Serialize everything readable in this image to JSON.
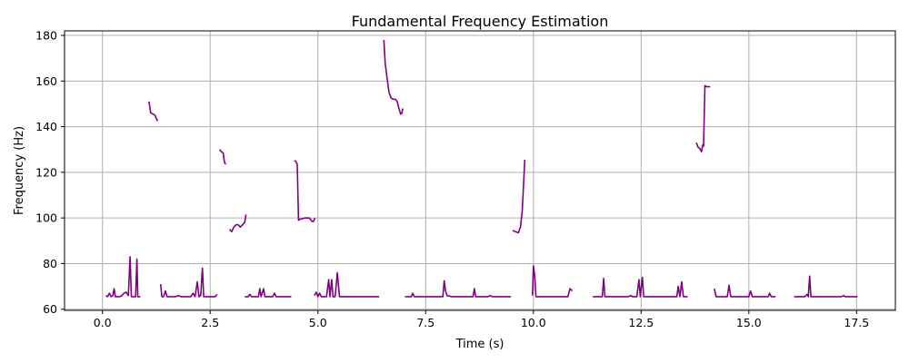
{
  "chart_data": {
    "type": "line",
    "title": "Fundamental Frequency Estimation",
    "xlabel": "Time (s)",
    "ylabel": "Frequency (Hz)",
    "xlim": [
      -0.88,
      18.4
    ],
    "ylim": [
      59.5,
      182
    ],
    "xticks": [
      0.0,
      2.5,
      5.0,
      7.5,
      10.0,
      12.5,
      15.0,
      17.5
    ],
    "xtick_labels": [
      "0.0",
      "2.5",
      "5.0",
      "7.5",
      "10.0",
      "12.5",
      "15.0",
      "17.5"
    ],
    "yticks": [
      60,
      80,
      100,
      120,
      140,
      160,
      180
    ],
    "ytick_labels": [
      "60",
      "80",
      "100",
      "120",
      "140",
      "160",
      "180"
    ],
    "grid": true,
    "line_color": "#800080",
    "series": [
      {
        "segments": [
          [
            [
              0.08,
              66
            ],
            [
              0.12,
              65.5
            ],
            [
              0.16,
              67
            ],
            [
              0.2,
              65.5
            ],
            [
              0.24,
              66
            ],
            [
              0.27,
              69
            ],
            [
              0.3,
              65.5
            ],
            [
              0.34,
              65.5
            ],
            [
              0.4,
              65.5
            ],
            [
              0.45,
              66
            ],
            [
              0.5,
              67
            ],
            [
              0.55,
              67.5
            ],
            [
              0.6,
              66
            ],
            [
              0.64,
              83
            ],
            [
              0.67,
              65.5
            ],
            [
              0.72,
              65.5
            ],
            [
              0.77,
              65.5
            ],
            [
              0.8,
              82
            ],
            [
              0.82,
              65.5
            ],
            [
              0.88,
              65.5
            ]
          ],
          [
            [
              1.08,
              151
            ],
            [
              1.12,
              146
            ],
            [
              1.18,
              145.5
            ],
            [
              1.22,
              145
            ],
            [
              1.25,
              143.5
            ],
            [
              1.28,
              142.5
            ]
          ],
          [
            [
              1.35,
              71
            ],
            [
              1.38,
              65.5
            ],
            [
              1.42,
              65.5
            ],
            [
              1.46,
              68
            ],
            [
              1.5,
              65.5
            ],
            [
              1.6,
              65.5
            ],
            [
              1.7,
              65.5
            ],
            [
              1.76,
              66
            ],
            [
              1.82,
              65.5
            ],
            [
              1.9,
              65.5
            ],
            [
              2.0,
              65.5
            ],
            [
              2.05,
              65.5
            ],
            [
              2.1,
              67
            ],
            [
              2.15,
              65.5
            ],
            [
              2.2,
              72
            ],
            [
              2.24,
              65.5
            ],
            [
              2.28,
              66
            ],
            [
              2.32,
              78
            ],
            [
              2.35,
              65.5
            ],
            [
              2.42,
              65.5
            ],
            [
              2.55,
              65.5
            ],
            [
              2.62,
              65.5
            ],
            [
              2.66,
              66.5
            ]
          ],
          [
            [
              2.72,
              130
            ],
            [
              2.76,
              129
            ],
            [
              2.8,
              128.5
            ],
            [
              2.83,
              124.5
            ],
            [
              2.86,
              123.5
            ]
          ],
          [
            [
              2.95,
              95
            ],
            [
              3.0,
              94
            ],
            [
              3.05,
              96
            ],
            [
              3.1,
              97
            ],
            [
              3.15,
              97
            ],
            [
              3.2,
              96
            ],
            [
              3.25,
              97
            ],
            [
              3.3,
              98
            ],
            [
              3.33,
              101.5
            ]
          ],
          [
            [
              3.3,
              65.5
            ],
            [
              3.38,
              65.5
            ],
            [
              3.42,
              66.5
            ],
            [
              3.46,
              65.5
            ],
            [
              3.55,
              65.5
            ],
            [
              3.62,
              65.5
            ],
            [
              3.65,
              69
            ],
            [
              3.68,
              65.5
            ],
            [
              3.74,
              69
            ],
            [
              3.77,
              65.5
            ],
            [
              3.85,
              65.5
            ],
            [
              3.95,
              65.5
            ],
            [
              3.99,
              67
            ],
            [
              4.03,
              65.5
            ],
            [
              4.15,
              65.5
            ],
            [
              4.25,
              65.5
            ],
            [
              4.33,
              65.5
            ],
            [
              4.38,
              65.5
            ]
          ],
          [
            [
              4.45,
              125
            ],
            [
              4.48,
              125
            ],
            [
              4.52,
              123.5
            ],
            [
              4.55,
              99
            ],
            [
              4.6,
              99.5
            ],
            [
              4.7,
              100
            ],
            [
              4.8,
              100
            ],
            [
              4.86,
              98.5
            ],
            [
              4.9,
              98.5
            ],
            [
              4.93,
              100
            ]
          ],
          [
            [
              4.92,
              66
            ],
            [
              4.96,
              67.5
            ],
            [
              5.0,
              65.5
            ],
            [
              5.04,
              67
            ],
            [
              5.08,
              65.5
            ],
            [
              5.14,
              65.5
            ],
            [
              5.2,
              65.5
            ],
            [
              5.25,
              73
            ],
            [
              5.28,
              65.5
            ],
            [
              5.32,
              73
            ],
            [
              5.35,
              65.5
            ],
            [
              5.4,
              65.5
            ],
            [
              5.45,
              76
            ],
            [
              5.5,
              65.5
            ],
            [
              5.6,
              65.5
            ],
            [
              5.8,
              65.5
            ],
            [
              6.0,
              65.5
            ],
            [
              6.2,
              65.5
            ],
            [
              6.42,
              65.5
            ]
          ],
          [
            [
              6.53,
              178
            ],
            [
              6.56,
              168
            ],
            [
              6.6,
              162
            ],
            [
              6.65,
              155
            ],
            [
              6.7,
              152.5
            ],
            [
              6.75,
              152
            ],
            [
              6.8,
              152
            ],
            [
              6.84,
              151
            ],
            [
              6.88,
              148
            ],
            [
              6.92,
              145.5
            ],
            [
              6.95,
              146
            ],
            [
              6.97,
              148
            ]
          ],
          [
            [
              7.02,
              65.5
            ],
            [
              7.1,
              65.5
            ],
            [
              7.17,
              65.5
            ],
            [
              7.2,
              67
            ],
            [
              7.24,
              65.5
            ],
            [
              7.4,
              65.5
            ],
            [
              7.6,
              65.5
            ],
            [
              7.8,
              65.5
            ],
            [
              7.9,
              65.5
            ],
            [
              7.93,
              72.5
            ],
            [
              7.96,
              68
            ],
            [
              8.0,
              66
            ],
            [
              8.1,
              65.5
            ],
            [
              8.3,
              65.5
            ],
            [
              8.5,
              65.5
            ],
            [
              8.6,
              65.5
            ],
            [
              8.63,
              69
            ],
            [
              8.66,
              65.5
            ],
            [
              8.8,
              65.5
            ],
            [
              8.95,
              65.5
            ],
            [
              9.0,
              66
            ],
            [
              9.04,
              65.5
            ],
            [
              9.2,
              65.5
            ],
            [
              9.4,
              65.5
            ],
            [
              9.48,
              65.5
            ]
          ],
          [
            [
              9.52,
              94.5
            ],
            [
              9.58,
              94
            ],
            [
              9.65,
              93.5
            ],
            [
              9.7,
              96
            ],
            [
              9.74,
              103
            ],
            [
              9.78,
              118
            ],
            [
              9.8,
              125.5
            ]
          ],
          [
            [
              9.98,
              66
            ],
            [
              10.0,
              79
            ],
            [
              10.03,
              75
            ],
            [
              10.06,
              65.5
            ],
            [
              10.2,
              65.5
            ],
            [
              10.4,
              65.5
            ],
            [
              10.6,
              65.5
            ],
            [
              10.8,
              65.5
            ],
            [
              10.85,
              69
            ],
            [
              10.9,
              68
            ]
          ],
          [
            [
              11.38,
              65.5
            ],
            [
              11.5,
              65.5
            ],
            [
              11.6,
              65.5
            ],
            [
              11.63,
              73.5
            ],
            [
              11.66,
              65.5
            ],
            [
              11.8,
              65.5
            ],
            [
              12.0,
              65.5
            ],
            [
              12.2,
              65.5
            ],
            [
              12.26,
              66
            ],
            [
              12.3,
              65.5
            ],
            [
              12.4,
              65.5
            ],
            [
              12.45,
              73
            ],
            [
              12.48,
              65.5
            ],
            [
              12.53,
              74
            ],
            [
              12.56,
              65.5
            ],
            [
              12.8,
              65.5
            ],
            [
              13.0,
              65.5
            ],
            [
              13.2,
              65.5
            ],
            [
              13.33,
              65.5
            ],
            [
              13.36,
              70
            ],
            [
              13.4,
              65.5
            ],
            [
              13.44,
              72
            ],
            [
              13.48,
              65.5
            ],
            [
              13.58,
              65.5
            ]
          ],
          [
            [
              13.78,
              133
            ],
            [
              13.82,
              131
            ],
            [
              13.86,
              130.5
            ],
            [
              13.9,
              129
            ],
            [
              13.93,
              132
            ],
            [
              13.95,
              131.5
            ],
            [
              13.98,
              158
            ],
            [
              14.02,
              157.5
            ],
            [
              14.1,
              157.5
            ]
          ],
          [
            [
              14.2,
              69
            ],
            [
              14.24,
              65.5
            ],
            [
              14.4,
              65.5
            ],
            [
              14.5,
              65.5
            ],
            [
              14.54,
              70.5
            ],
            [
              14.58,
              65.5
            ],
            [
              14.8,
              65.5
            ],
            [
              15.0,
              65.5
            ],
            [
              15.04,
              68
            ],
            [
              15.08,
              65.5
            ],
            [
              15.3,
              65.5
            ],
            [
              15.45,
              65.5
            ],
            [
              15.48,
              67
            ],
            [
              15.52,
              65.5
            ],
            [
              15.62,
              65.5
            ]
          ],
          [
            [
              16.05,
              65.5
            ],
            [
              16.2,
              65.5
            ],
            [
              16.3,
              65.5
            ],
            [
              16.35,
              66.5
            ],
            [
              16.38,
              65.5
            ],
            [
              16.41,
              74.5
            ],
            [
              16.44,
              65.5
            ],
            [
              16.6,
              65.5
            ],
            [
              16.8,
              65.5
            ],
            [
              17.0,
              65.5
            ],
            [
              17.15,
              65.5
            ],
            [
              17.2,
              66
            ],
            [
              17.24,
              65.5
            ],
            [
              17.4,
              65.5
            ],
            [
              17.52,
              65.5
            ]
          ]
        ]
      }
    ]
  }
}
